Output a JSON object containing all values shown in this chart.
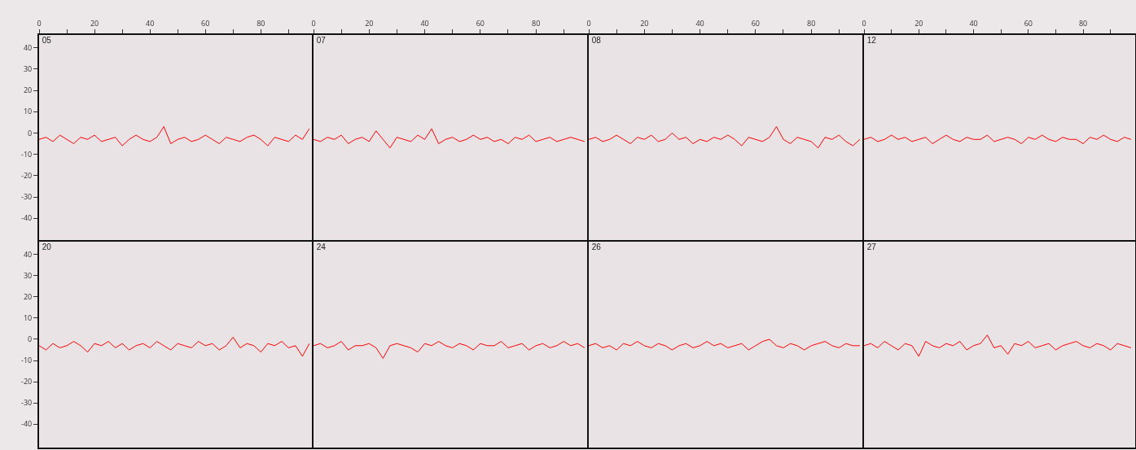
{
  "chart_data": [
    {
      "type": "line",
      "title": "05",
      "tick_labels": "xy",
      "xlim": [
        0,
        99
      ],
      "ylim": [
        -51,
        46
      ],
      "xticks": [
        0,
        {
          "value": 10,
          "label": null
        },
        20,
        {
          "value": 30,
          "label": null
        },
        40,
        {
          "value": 50,
          "label": null
        },
        60,
        {
          "value": 70,
          "label": null
        },
        80,
        {
          "value": 90,
          "label": null
        }
      ],
      "yticks": [
        -40,
        -30,
        -20,
        -10,
        0,
        10,
        20,
        30,
        40
      ],
      "x": [
        0,
        2.5,
        5,
        7.5,
        10,
        12.5,
        15,
        17.5,
        20,
        22.5,
        25,
        27.5,
        30,
        32.5,
        35,
        37.5,
        40,
        42.5,
        45,
        47.5,
        50,
        52.5,
        55,
        57.5,
        60,
        62.5,
        65,
        67.5,
        70,
        72.5,
        75,
        77.5,
        80,
        82.5,
        85,
        87.5,
        90,
        92.5,
        95,
        97.5
      ],
      "series": [
        {
          "color": "#ff0000",
          "values": [
            -3,
            -2,
            -4,
            -1,
            -3,
            -5,
            -2,
            -3,
            -1,
            -4,
            -3,
            -2,
            -6,
            -3,
            -1,
            -3,
            -4,
            -2,
            3,
            -5,
            -3,
            -2,
            -4,
            -3,
            -1,
            -3,
            -5,
            -2,
            -3,
            -4,
            -2,
            -1,
            -3,
            -6,
            -2,
            -3,
            -4,
            -1,
            -3,
            2
          ]
        }
      ]
    },
    {
      "type": "line",
      "title": "07",
      "tick_labels": "x",
      "xlim": [
        0,
        99
      ],
      "ylim": [
        -51,
        46
      ],
      "xticks": [
        0,
        {
          "value": 10,
          "label": null
        },
        20,
        {
          "value": 30,
          "label": null
        },
        40,
        {
          "value": 50,
          "label": null
        },
        60,
        {
          "value": 70,
          "label": null
        },
        80,
        {
          "value": 90,
          "label": null
        }
      ],
      "yticks": [
        -40,
        -30,
        -20,
        -10,
        0,
        10,
        20,
        30,
        40
      ],
      "x": [
        0,
        2.5,
        5,
        7.5,
        10,
        12.5,
        15,
        17.5,
        20,
        22.5,
        25,
        27.5,
        30,
        32.5,
        35,
        37.5,
        40,
        42.5,
        45,
        47.5,
        50,
        52.5,
        55,
        57.5,
        60,
        62.5,
        65,
        67.5,
        70,
        72.5,
        75,
        77.5,
        80,
        82.5,
        85,
        87.5,
        90,
        92.5,
        95,
        97.5
      ],
      "series": [
        {
          "color": "#ff0000",
          "values": [
            -3,
            -4,
            -2,
            -3,
            -1,
            -5,
            -3,
            -2,
            -4,
            1,
            -3,
            -7,
            -2,
            -3,
            -4,
            -1,
            -3,
            2,
            -5,
            -3,
            -2,
            -4,
            -3,
            -1,
            -3,
            -2,
            -4,
            -3,
            -5,
            -2,
            -3,
            -1,
            -4,
            -3,
            -2,
            -4,
            -3,
            -2,
            -3,
            -4
          ]
        }
      ]
    },
    {
      "type": "line",
      "title": "08",
      "tick_labels": "x",
      "xlim": [
        0,
        99
      ],
      "ylim": [
        -51,
        46
      ],
      "xticks": [
        0,
        {
          "value": 10,
          "label": null
        },
        20,
        {
          "value": 30,
          "label": null
        },
        40,
        {
          "value": 50,
          "label": null
        },
        60,
        {
          "value": 70,
          "label": null
        },
        80,
        {
          "value": 90,
          "label": null
        }
      ],
      "yticks": [
        -40,
        -30,
        -20,
        -10,
        0,
        10,
        20,
        30,
        40
      ],
      "x": [
        0,
        2.5,
        5,
        7.5,
        10,
        12.5,
        15,
        17.5,
        20,
        22.5,
        25,
        27.5,
        30,
        32.5,
        35,
        37.5,
        40,
        42.5,
        45,
        47.5,
        50,
        52.5,
        55,
        57.5,
        60,
        62.5,
        65,
        67.5,
        70,
        72.5,
        75,
        77.5,
        80,
        82.5,
        85,
        87.5,
        90,
        92.5,
        95,
        97.5
      ],
      "series": [
        {
          "color": "#ff0000",
          "values": [
            -3,
            -2,
            -4,
            -3,
            -1,
            -3,
            -5,
            -2,
            -3,
            -1,
            -4,
            -3,
            0,
            -3,
            -2,
            -5,
            -3,
            -4,
            -2,
            -3,
            -1,
            -3,
            -6,
            -2,
            -3,
            -4,
            -2,
            3,
            -3,
            -5,
            -2,
            -3,
            -4,
            -7,
            -2,
            -3,
            -1,
            -4,
            -6,
            -3
          ]
        }
      ]
    },
    {
      "type": "line",
      "title": "12",
      "tick_labels": "x",
      "xlim": [
        0,
        99
      ],
      "ylim": [
        -51,
        46
      ],
      "xticks": [
        0,
        {
          "value": 10,
          "label": null
        },
        20,
        {
          "value": 30,
          "label": null
        },
        40,
        {
          "value": 50,
          "label": null
        },
        60,
        {
          "value": 70,
          "label": null
        },
        80,
        {
          "value": 90,
          "label": null
        }
      ],
      "yticks": [
        -40,
        -30,
        -20,
        -10,
        0,
        10,
        20,
        30,
        40
      ],
      "x": [
        0,
        2.5,
        5,
        7.5,
        10,
        12.5,
        15,
        17.5,
        20,
        22.5,
        25,
        27.5,
        30,
        32.5,
        35,
        37.5,
        40,
        42.5,
        45,
        47.5,
        50,
        52.5,
        55,
        57.5,
        60,
        62.5,
        65,
        67.5,
        70,
        72.5,
        75,
        77.5,
        80,
        82.5,
        85,
        87.5,
        90,
        92.5,
        95,
        97.5
      ],
      "series": [
        {
          "color": "#ff0000",
          "values": [
            -3,
            -2,
            -4,
            -3,
            -1,
            -3,
            -2,
            -4,
            -3,
            -2,
            -5,
            -3,
            -1,
            -3,
            -4,
            -2,
            -3,
            -3,
            -1,
            -4,
            -3,
            -2,
            -3,
            -5,
            -2,
            -3,
            -1,
            -3,
            -4,
            -2,
            -3,
            -3,
            -5,
            -2,
            -3,
            -1,
            -3,
            -4,
            -2,
            -3
          ]
        }
      ]
    },
    {
      "type": "line",
      "title": "20",
      "tick_labels": "y",
      "xlim": [
        0,
        99
      ],
      "ylim": [
        -51,
        46
      ],
      "xticks": [
        0,
        20,
        40,
        60,
        80
      ],
      "yticks": [
        -40,
        -30,
        -20,
        -10,
        0,
        10,
        20,
        30,
        40
      ],
      "x": [
        0,
        2.5,
        5,
        7.5,
        10,
        12.5,
        15,
        17.5,
        20,
        22.5,
        25,
        27.5,
        30,
        32.5,
        35,
        37.5,
        40,
        42.5,
        45,
        47.5,
        50,
        52.5,
        55,
        57.5,
        60,
        62.5,
        65,
        67.5,
        70,
        72.5,
        75,
        77.5,
        80,
        82.5,
        85,
        87.5,
        90,
        92.5,
        95,
        97.5
      ],
      "series": [
        {
          "color": "#ff0000",
          "values": [
            -3,
            -5,
            -2,
            -4,
            -3,
            -1,
            -3,
            -6,
            -2,
            -3,
            -1,
            -4,
            -2,
            -5,
            -3,
            -2,
            -4,
            -1,
            -3,
            -5,
            -2,
            -3,
            -4,
            -1,
            -3,
            -2,
            -5,
            -3,
            1,
            -4,
            -2,
            -3,
            -6,
            -2,
            -3,
            -1,
            -4,
            -3,
            -8,
            -2
          ]
        }
      ]
    },
    {
      "type": "line",
      "title": "24",
      "tick_labels": false,
      "xlim": [
        0,
        99
      ],
      "ylim": [
        -51,
        46
      ],
      "xticks": [
        0,
        20,
        40,
        60,
        80
      ],
      "yticks": [
        -40,
        -30,
        -20,
        -10,
        0,
        10,
        20,
        30,
        40
      ],
      "x": [
        0,
        2.5,
        5,
        7.5,
        10,
        12.5,
        15,
        17.5,
        20,
        22.5,
        25,
        27.5,
        30,
        32.5,
        35,
        37.5,
        40,
        42.5,
        45,
        47.5,
        50,
        52.5,
        55,
        57.5,
        60,
        62.5,
        65,
        67.5,
        70,
        72.5,
        75,
        77.5,
        80,
        82.5,
        85,
        87.5,
        90,
        92.5,
        95,
        97.5
      ],
      "series": [
        {
          "color": "#ff0000",
          "values": [
            -3,
            -2,
            -4,
            -3,
            -1,
            -5,
            -3,
            -3,
            -2,
            -4,
            -9,
            -3,
            -2,
            -3,
            -4,
            -6,
            -2,
            -3,
            -1,
            -3,
            -4,
            -2,
            -3,
            -5,
            -2,
            -3,
            -3,
            -1,
            -4,
            -3,
            -2,
            -5,
            -3,
            -2,
            -4,
            -3,
            -1,
            -3,
            -2,
            -4
          ]
        }
      ]
    },
    {
      "type": "line",
      "title": "26",
      "tick_labels": false,
      "xlim": [
        0,
        99
      ],
      "ylim": [
        -51,
        46
      ],
      "xticks": [
        0,
        20,
        40,
        60,
        80
      ],
      "yticks": [
        -40,
        -30,
        -20,
        -10,
        0,
        10,
        20,
        30,
        40
      ],
      "x": [
        0,
        2.5,
        5,
        7.5,
        10,
        12.5,
        15,
        17.5,
        20,
        22.5,
        25,
        27.5,
        30,
        32.5,
        35,
        37.5,
        40,
        42.5,
        45,
        47.5,
        50,
        52.5,
        55,
        57.5,
        60,
        62.5,
        65,
        67.5,
        70,
        72.5,
        75,
        77.5,
        80,
        82.5,
        85,
        87.5,
        90,
        92.5,
        95,
        97.5
      ],
      "series": [
        {
          "color": "#ff0000",
          "values": [
            -3,
            -2,
            -4,
            -3,
            -5,
            -2,
            -3,
            -1,
            -3,
            -4,
            -2,
            -3,
            -5,
            -3,
            -2,
            -4,
            -3,
            -1,
            -3,
            -2,
            -4,
            -3,
            -2,
            -5,
            -3,
            -1,
            0,
            -3,
            -4,
            -2,
            -3,
            -5,
            -3,
            -2,
            -1,
            -3,
            -4,
            -2,
            -3,
            -3
          ]
        }
      ]
    },
    {
      "type": "line",
      "title": "27",
      "tick_labels": false,
      "xlim": [
        0,
        99
      ],
      "ylim": [
        -51,
        46
      ],
      "xticks": [
        0,
        20,
        40,
        60,
        80
      ],
      "yticks": [
        -40,
        -30,
        -20,
        -10,
        0,
        10,
        20,
        30,
        40
      ],
      "x": [
        0,
        2.5,
        5,
        7.5,
        10,
        12.5,
        15,
        17.5,
        20,
        22.5,
        25,
        27.5,
        30,
        32.5,
        35,
        37.5,
        40,
        42.5,
        45,
        47.5,
        50,
        52.5,
        55,
        57.5,
        60,
        62.5,
        65,
        67.5,
        70,
        72.5,
        75,
        77.5,
        80,
        82.5,
        85,
        87.5,
        90,
        92.5,
        95,
        97.5
      ],
      "series": [
        {
          "color": "#ff0000",
          "values": [
            -3,
            -2,
            -4,
            -1,
            -3,
            -5,
            -2,
            -3,
            -8,
            -1,
            -3,
            -4,
            -2,
            -3,
            -1,
            -5,
            -3,
            -2,
            2,
            -4,
            -3,
            -7,
            -2,
            -3,
            -1,
            -4,
            -3,
            -2,
            -5,
            -3,
            -2,
            -1,
            -3,
            -4,
            -2,
            -3,
            -5,
            -2,
            -3,
            -4
          ]
        }
      ]
    }
  ]
}
